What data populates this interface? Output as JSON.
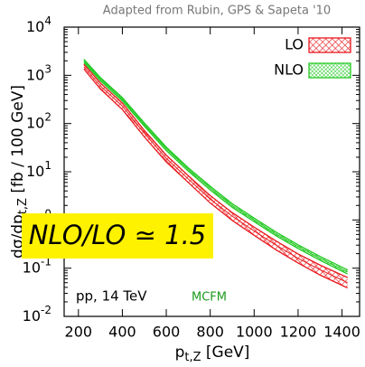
{
  "chart_data": {
    "type": "band",
    "title": "Adapted from Rubin, GPS & Sapeta '10",
    "ylabel": "dσ/dp",
    "ylabel_sub": "t,Z",
    "ylabel_unit": " [fb / 100 GeV]",
    "xlabel": "p",
    "xlabel_sub": "t,Z",
    "xlabel_unit": " [GeV]",
    "annotations": [
      "NLO/LO ≃ 1.5",
      "pp, 14 TeV",
      "MCFM"
    ],
    "log_y": true,
    "legend": "top-right",
    "x": [
      225,
      300,
      400,
      500,
      600,
      700,
      800,
      900,
      1000,
      1100,
      1200,
      1300,
      1425
    ],
    "series": [
      {
        "name": "LO",
        "color": "#e8161b",
        "values": [
          1500,
          600,
          230,
          63,
          19,
          7.1,
          2.7,
          1.2,
          0.59,
          0.3,
          0.16,
          0.093,
          0.05
        ],
        "upper": [
          1700,
          690,
          265,
          72,
          22,
          8.3,
          3.2,
          1.42,
          0.71,
          0.365,
          0.197,
          0.116,
          0.064
        ],
        "lower": [
          1350,
          520,
          195,
          53,
          16,
          6.0,
          2.25,
          0.98,
          0.48,
          0.24,
          0.128,
          0.072,
          0.039
        ]
      },
      {
        "name": "NLO",
        "color": "#22c922",
        "values": [
          2000,
          830,
          320,
          95,
          30,
          11.2,
          4.6,
          2.0,
          1.0,
          0.51,
          0.28,
          0.16,
          0.083
        ],
        "upper": [
          2150,
          900,
          345,
          103,
          32.5,
          12.1,
          5.0,
          2.18,
          1.09,
          0.56,
          0.306,
          0.175,
          0.092
        ],
        "lower": [
          1850,
          770,
          295,
          88,
          27.5,
          10.3,
          4.2,
          1.83,
          0.92,
          0.47,
          0.256,
          0.146,
          0.076
        ]
      }
    ],
    "xlim": [
      135,
      1480
    ],
    "xticks": [
      200,
      400,
      600,
      800,
      1000,
      1200,
      1400
    ],
    "ylim": [
      0.01,
      10000
    ],
    "yticks": [
      {
        "value": 0.01,
        "label": "10",
        "exp": "-2"
      },
      {
        "value": 0.1,
        "label": "10",
        "exp": "-1"
      },
      {
        "value": 1,
        "label": "10",
        "exp": "0"
      },
      {
        "value": 10,
        "label": "10",
        "exp": "1"
      },
      {
        "value": 100,
        "label": "10",
        "exp": "2"
      },
      {
        "value": 1000,
        "label": "10",
        "exp": "3"
      },
      {
        "value": 10000,
        "label": "10",
        "exp": "4"
      }
    ]
  }
}
